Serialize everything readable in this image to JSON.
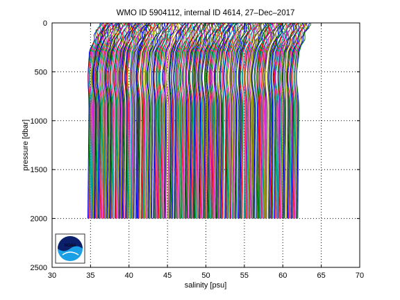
{
  "chart_data": {
    "type": "line",
    "title": "WMO ID 5904112, internal ID 4614, 27–Dec–2017",
    "xlabel": "salinity [psu]",
    "ylabel": "pressure [dbar]",
    "xlim": [
      30,
      70
    ],
    "ylim": [
      0,
      2500
    ],
    "y_reversed": true,
    "xticks": [
      30,
      35,
      40,
      45,
      50,
      55,
      60,
      65,
      70
    ],
    "yticks": [
      0,
      500,
      1000,
      1500,
      2000,
      2500
    ],
    "grid": true,
    "profile_colors": [
      "#0000ff",
      "#007f00",
      "#ff0000",
      "#00bfbf",
      "#bf00bf",
      "#bfbf00",
      "#404040"
    ],
    "profile_offset_step": 0.1,
    "profile_count": 310,
    "base_profile_x_at_depth": [
      34.9,
      35.4,
      36.2,
      36.9,
      37.6,
      38.4,
      39.1,
      39.8,
      40.5,
      41.3,
      42.0,
      43.0,
      44.0,
      45.0,
      45.9,
      46.9,
      47.8,
      48.6,
      49.5,
      50.3,
      51.0,
      51.9,
      52.8,
      53.7,
      54.6,
      55.5,
      56.3,
      57.1,
      57.9,
      58.8,
      59.6,
      60.5,
      61.3
    ],
    "base_profile_max_pressure": 2000
  },
  "logo": {
    "text": "NOAA"
  }
}
